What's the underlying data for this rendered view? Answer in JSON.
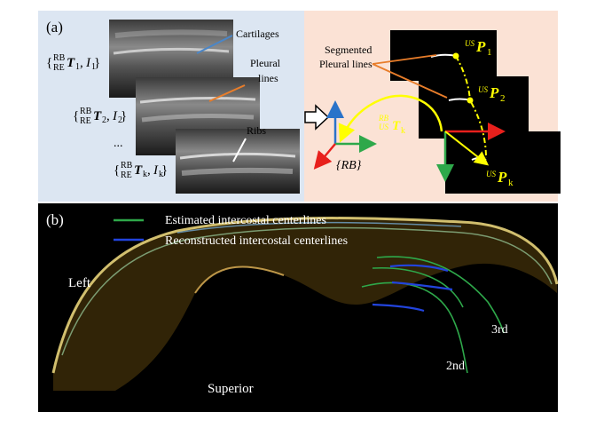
{
  "panel_a": {
    "label": "(a)",
    "annotations": {
      "cartilages": "Cartilages",
      "pleural_lines_1": "Pleural",
      "pleural_lines_2": "lines",
      "ribs": "Ribs",
      "segmented_1": "Segmented",
      "segmented_2": "Pleural lines",
      "frame_rb": "{RB}",
      "ellipsis": "..."
    },
    "pose_labels": [
      {
        "open": "{",
        "sup": "RB",
        "sub": "RE",
        "T": "T",
        "tsub": "1",
        "comma": ", ",
        "I": "I",
        "isub": "1",
        "close": " }"
      },
      {
        "open": "{",
        "sup": "RB",
        "sub": "RE",
        "T": "T",
        "tsub": "2",
        "comma": ", ",
        "I": "I",
        "isub": "2",
        "close": " }"
      },
      {
        "open": "{",
        "sup": "RB",
        "sub": "RE",
        "T": "T",
        "tsub": "k",
        "comma": ", ",
        "I": "I",
        "isub": "k",
        "close": " }"
      }
    ],
    "transform_label": {
      "sup": "RB",
      "sub": "US",
      "T": "T",
      "tsub": "k"
    },
    "points": [
      {
        "sup": "US",
        "P": "P",
        "sub": "1"
      },
      {
        "sup": "US",
        "P": "P",
        "sub": "2"
      },
      {
        "sup": "US",
        "P": "P",
        "sub": "k"
      }
    ]
  },
  "panel_b": {
    "label": "(b)",
    "legend": [
      {
        "label": "Estimated intercostal centerlines",
        "color": "#2ea84a"
      },
      {
        "label": "Reconstructed intercostal centerlines",
        "color": "#2244dd"
      }
    ],
    "labels": {
      "left": "Left",
      "superior": "Superior",
      "second": "2nd",
      "third": "3rd"
    }
  },
  "colors": {
    "panel_a_left_bg": "#dce6f2",
    "panel_a_right_bg": "#fbe2d5",
    "panel_b_bg": "#000000",
    "yellow": "#ffff00",
    "orange_callout": "#e87d2a",
    "blue_callout": "#4a86c8"
  }
}
